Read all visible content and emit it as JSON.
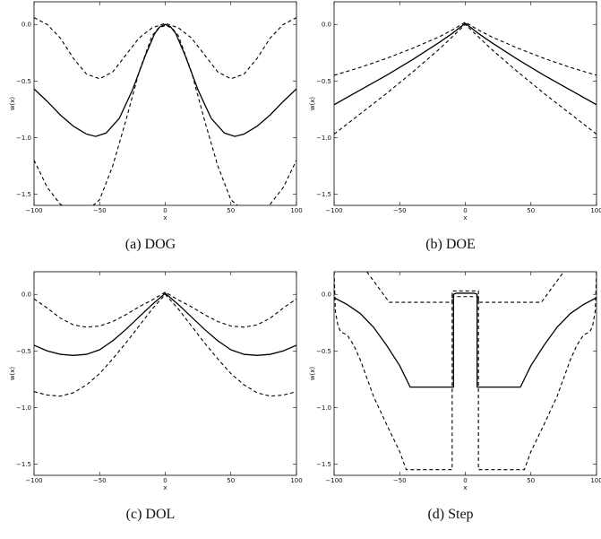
{
  "chart_data": [
    {
      "id": "a",
      "type": "line",
      "caption": "(a) DOG",
      "xlabel": "x",
      "ylabel": "w(x)",
      "xlim": [
        -100,
        100
      ],
      "ylim": [
        -1.6,
        0.2
      ],
      "xticks": [
        -100,
        -50,
        0,
        50,
        100
      ],
      "yticks": [
        0.0,
        -0.5,
        -1.0,
        -1.5
      ],
      "xtick_labels": [
        "−100",
        "−50",
        "0",
        "50",
        "100"
      ],
      "ytick_labels": [
        "0.0",
        "−0.5",
        "−1.0",
        "−1.5"
      ],
      "grid": false,
      "series": [
        {
          "style": "solid",
          "x": [
            -100,
            -90,
            -80,
            -70,
            -60,
            -53,
            -45,
            -35,
            -25,
            -15,
            -8,
            -4,
            0,
            4,
            8,
            15,
            25,
            35,
            45,
            53,
            60,
            70,
            80,
            90,
            100
          ],
          "values": [
            -0.57,
            -0.68,
            -0.8,
            -0.9,
            -0.97,
            -0.99,
            -0.96,
            -0.83,
            -0.58,
            -0.27,
            -0.08,
            -0.02,
            0.0,
            -0.02,
            -0.08,
            -0.27,
            -0.58,
            -0.83,
            -0.96,
            -0.99,
            -0.97,
            -0.9,
            -0.8,
            -0.68,
            -0.57
          ]
        },
        {
          "style": "dashed",
          "x": [
            -100,
            -90,
            -80,
            -70,
            -60,
            -50,
            -40,
            -30,
            -20,
            -10,
            -5,
            0,
            5,
            10,
            20,
            30,
            40,
            50,
            60,
            70,
            80,
            90,
            100
          ],
          "values": [
            0.06,
            0.0,
            -0.12,
            -0.3,
            -0.44,
            -0.48,
            -0.42,
            -0.27,
            -0.12,
            -0.03,
            -0.01,
            0.01,
            -0.01,
            -0.03,
            -0.12,
            -0.27,
            -0.42,
            -0.48,
            -0.44,
            -0.3,
            -0.12,
            0.0,
            0.06
          ]
        },
        {
          "style": "dashed",
          "x": [
            -100,
            -90,
            -80,
            -70,
            -60,
            -50,
            -40,
            -30,
            -20,
            -10,
            -5,
            0,
            5,
            10,
            20,
            30,
            40,
            50,
            60,
            70,
            80,
            90,
            100
          ],
          "values": [
            -1.2,
            -1.44,
            -1.59,
            -1.65,
            -1.65,
            -1.55,
            -1.25,
            -0.85,
            -0.42,
            -0.1,
            -0.03,
            -0.01,
            -0.03,
            -0.1,
            -0.42,
            -0.85,
            -1.25,
            -1.55,
            -1.65,
            -1.65,
            -1.59,
            -1.44,
            -1.2
          ]
        }
      ]
    },
    {
      "id": "b",
      "type": "line",
      "caption": "(b) DOE",
      "xlabel": "x",
      "ylabel": "w(x)",
      "xlim": [
        -100,
        100
      ],
      "ylim": [
        -1.6,
        0.2
      ],
      "xticks": [
        -100,
        -50,
        0,
        50,
        100
      ],
      "yticks": [
        0.0,
        -0.5,
        -1.0,
        -1.5
      ],
      "xtick_labels": [
        "−100",
        "−50",
        "0",
        "50",
        "100"
      ],
      "ytick_labels": [
        "0.0",
        "−0.5",
        "−1.0",
        "−1.5"
      ],
      "grid": false,
      "series": [
        {
          "style": "solid",
          "x": [
            -100,
            -80,
            -60,
            -40,
            -20,
            -10,
            0,
            10,
            20,
            40,
            60,
            80,
            100
          ],
          "values": [
            -0.71,
            -0.58,
            -0.45,
            -0.31,
            -0.16,
            -0.08,
            0.01,
            -0.08,
            -0.16,
            -0.31,
            -0.45,
            -0.58,
            -0.71
          ]
        },
        {
          "style": "dashed",
          "x": [
            -100,
            -80,
            -60,
            -40,
            -20,
            -10,
            0,
            10,
            20,
            40,
            60,
            80,
            100
          ],
          "values": [
            -0.45,
            -0.38,
            -0.3,
            -0.21,
            -0.11,
            -0.05,
            0.02,
            -0.05,
            -0.11,
            -0.21,
            -0.3,
            -0.38,
            -0.45
          ]
        },
        {
          "style": "dashed",
          "x": [
            -100,
            -80,
            -60,
            -40,
            -20,
            -10,
            0,
            10,
            20,
            40,
            60,
            80,
            100
          ],
          "values": [
            -0.97,
            -0.79,
            -0.61,
            -0.42,
            -0.22,
            -0.11,
            0.0,
            -0.11,
            -0.22,
            -0.42,
            -0.61,
            -0.79,
            -0.97
          ]
        }
      ]
    },
    {
      "id": "c",
      "type": "line",
      "caption": "(c) DOL",
      "xlabel": "x",
      "ylabel": "w(x)",
      "xlim": [
        -100,
        100
      ],
      "ylim": [
        -1.6,
        0.2
      ],
      "xticks": [
        -100,
        -50,
        0,
        50,
        100
      ],
      "yticks": [
        0.0,
        -0.5,
        -1.0,
        -1.5
      ],
      "xtick_labels": [
        "−100",
        "−50",
        "0",
        "50",
        "100"
      ],
      "ytick_labels": [
        "0.0",
        "−0.5",
        "−1.0",
        "−1.5"
      ],
      "grid": false,
      "series": [
        {
          "style": "solid",
          "x": [
            -100,
            -90,
            -80,
            -70,
            -60,
            -50,
            -40,
            -30,
            -20,
            -10,
            0,
            10,
            20,
            30,
            40,
            50,
            60,
            70,
            80,
            90,
            100
          ],
          "values": [
            -0.45,
            -0.5,
            -0.53,
            -0.54,
            -0.53,
            -0.49,
            -0.41,
            -0.31,
            -0.2,
            -0.09,
            0.01,
            -0.09,
            -0.2,
            -0.31,
            -0.41,
            -0.49,
            -0.53,
            -0.54,
            -0.53,
            -0.5,
            -0.45
          ]
        },
        {
          "style": "dashed",
          "x": [
            -100,
            -90,
            -80,
            -70,
            -60,
            -50,
            -40,
            -30,
            -20,
            -10,
            0,
            10,
            20,
            30,
            40,
            50,
            60,
            70,
            80,
            90,
            100
          ],
          "values": [
            -0.04,
            -0.12,
            -0.21,
            -0.27,
            -0.29,
            -0.28,
            -0.24,
            -0.18,
            -0.11,
            -0.05,
            0.02,
            -0.05,
            -0.11,
            -0.18,
            -0.24,
            -0.28,
            -0.29,
            -0.27,
            -0.21,
            -0.12,
            -0.04
          ]
        },
        {
          "style": "dashed",
          "x": [
            -100,
            -90,
            -80,
            -70,
            -60,
            -50,
            -40,
            -30,
            -20,
            -10,
            0,
            10,
            20,
            30,
            40,
            50,
            60,
            70,
            80,
            90,
            100
          ],
          "values": [
            -0.86,
            -0.89,
            -0.9,
            -0.87,
            -0.8,
            -0.7,
            -0.57,
            -0.43,
            -0.28,
            -0.13,
            0.0,
            -0.13,
            -0.28,
            -0.43,
            -0.57,
            -0.7,
            -0.8,
            -0.87,
            -0.9,
            -0.89,
            -0.86
          ]
        }
      ]
    },
    {
      "id": "d",
      "type": "line",
      "caption": "(d) Step",
      "xlabel": "x",
      "ylabel": "w(x)",
      "xlim": [
        -100,
        100
      ],
      "ylim": [
        -1.6,
        0.2
      ],
      "xticks": [
        -100,
        -50,
        0,
        50,
        100
      ],
      "yticks": [
        0.0,
        -0.5,
        -1.0,
        -1.5
      ],
      "xtick_labels": [
        "−100",
        "−50",
        "0",
        "50",
        "100"
      ],
      "ytick_labels": [
        "0.0",
        "−0.5",
        "−1.0",
        "−1.5"
      ],
      "grid": false,
      "series": [
        {
          "style": "solid",
          "x": [
            -100,
            -90,
            -80,
            -70,
            -60,
            -50,
            -42,
            -30,
            -20,
            -9,
            -9,
            -7,
            0,
            7,
            9,
            9,
            20,
            30,
            42,
            50,
            60,
            70,
            80,
            90,
            100
          ],
          "values": [
            -0.03,
            -0.09,
            -0.17,
            -0.29,
            -0.45,
            -0.63,
            -0.82,
            -0.82,
            -0.82,
            -0.82,
            0.0,
            0.01,
            0.01,
            0.01,
            0.0,
            -0.82,
            -0.82,
            -0.82,
            -0.82,
            -0.63,
            -0.45,
            -0.29,
            -0.17,
            -0.09,
            -0.03
          ]
        },
        {
          "style": "dashed",
          "x": [
            -75,
            -58,
            -35,
            -10,
            -10,
            -7,
            0,
            7,
            10,
            10,
            35,
            58,
            75
          ],
          "values": [
            0.2,
            -0.07,
            -0.07,
            -0.07,
            0.03,
            0.03,
            0.03,
            0.03,
            0.03,
            -0.07,
            -0.07,
            -0.07,
            0.2
          ]
        },
        {
          "style": "dashed",
          "x": [
            -100,
            -99,
            -97,
            -95,
            -90,
            -85,
            -80,
            -75,
            -70,
            -60,
            -50,
            -45,
            -40,
            -30,
            -20,
            -10,
            -10,
            -8,
            0,
            8,
            10,
            10,
            20,
            30,
            40,
            45,
            50,
            60,
            70,
            75,
            80,
            85,
            90,
            95,
            97,
            99,
            100
          ],
          "values": [
            0.2,
            -0.15,
            -0.28,
            -0.33,
            -0.36,
            -0.45,
            -0.58,
            -0.74,
            -0.9,
            -1.15,
            -1.39,
            -1.55,
            -1.55,
            -1.55,
            -1.55,
            -1.55,
            -0.02,
            -0.02,
            -0.02,
            -0.02,
            -0.02,
            -1.55,
            -1.55,
            -1.55,
            -1.55,
            -1.55,
            -1.39,
            -1.15,
            -0.9,
            -0.74,
            -0.58,
            -0.45,
            -0.36,
            -0.33,
            -0.28,
            -0.15,
            0.2
          ]
        }
      ]
    }
  ]
}
